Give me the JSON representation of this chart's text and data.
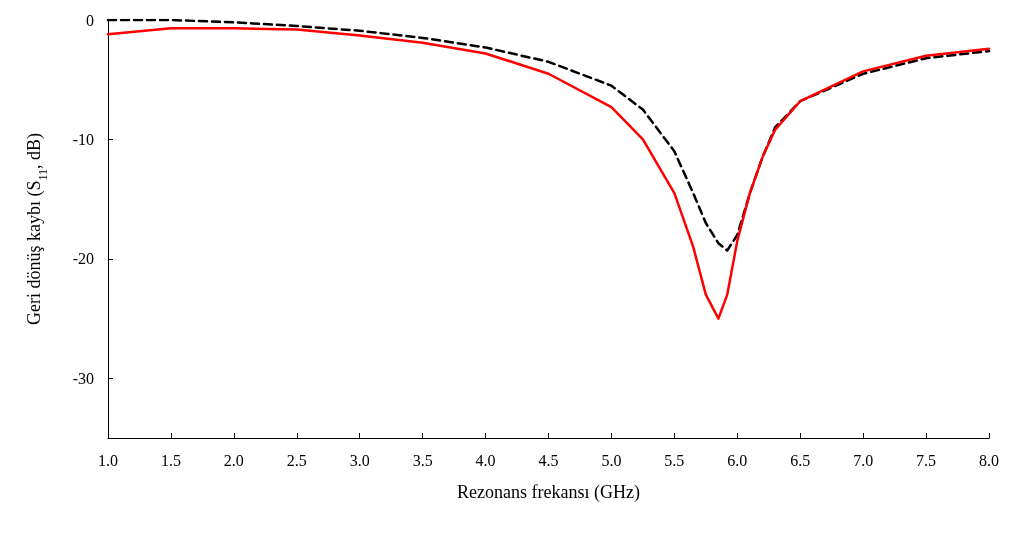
{
  "chart_data": {
    "type": "line",
    "xlabel": "Rezonans frekansı (GHz)",
    "ylabel": "Geri dönüş kaybı (S$_{11}$, dB)",
    "x": [
      1.0,
      1.5,
      2.0,
      2.5,
      3.0,
      3.5,
      4.0,
      4.5,
      5.0,
      5.25,
      5.5,
      5.65,
      5.75,
      5.85,
      5.92,
      6.0,
      6.1,
      6.2,
      6.3,
      6.5,
      7.0,
      7.5,
      8.0
    ],
    "series": [
      {
        "color": "#000000",
        "line_style": "dashed",
        "values": [
          0,
          0,
          -0.2,
          -0.5,
          -0.9,
          -1.5,
          -2.3,
          -3.5,
          -5.5,
          -7.5,
          -11,
          -14.5,
          -17,
          -18.7,
          -19.3,
          -18,
          -14.5,
          -11.5,
          -9,
          -6.8,
          -4.5,
          -3.2,
          -2.6
        ]
      },
      {
        "color": "#ff0000",
        "line_style": "solid",
        "values": [
          -1.2,
          -0.7,
          -0.7,
          -0.8,
          -1.3,
          -1.9,
          -2.8,
          -4.5,
          -7.3,
          -10,
          -14.5,
          -19,
          -23,
          -25,
          -23,
          -18.5,
          -14.5,
          -11.5,
          -9.2,
          -6.8,
          -4.3,
          -3.0,
          -2.4
        ]
      }
    ],
    "xlim": [
      1,
      8
    ],
    "xticks": [
      {
        "value": 1,
        "label": "1.0"
      },
      {
        "value": 1.5,
        "label": "1.5"
      },
      {
        "value": 2,
        "label": "2.0"
      },
      {
        "value": 2.5,
        "label": "2.5"
      },
      {
        "value": 3,
        "label": "3.0"
      },
      {
        "value": 3.5,
        "label": "3.5"
      },
      {
        "value": 4,
        "label": "4.0"
      },
      {
        "value": 4.5,
        "label": "4.5"
      },
      {
        "value": 5,
        "label": "5.0"
      },
      {
        "value": 5.5,
        "label": "5.5"
      },
      {
        "value": 6,
        "label": "6.0"
      },
      {
        "value": 6.5,
        "label": "6.5"
      },
      {
        "value": 7,
        "label": "7.0"
      },
      {
        "value": 7.5,
        "label": "7.5"
      },
      {
        "value": 8,
        "label": "8.0"
      }
    ],
    "ylim": [
      -35,
      0
    ],
    "yticks": [
      -30,
      -20,
      -10,
      0
    ],
    "marker": "none",
    "grid": false
  }
}
